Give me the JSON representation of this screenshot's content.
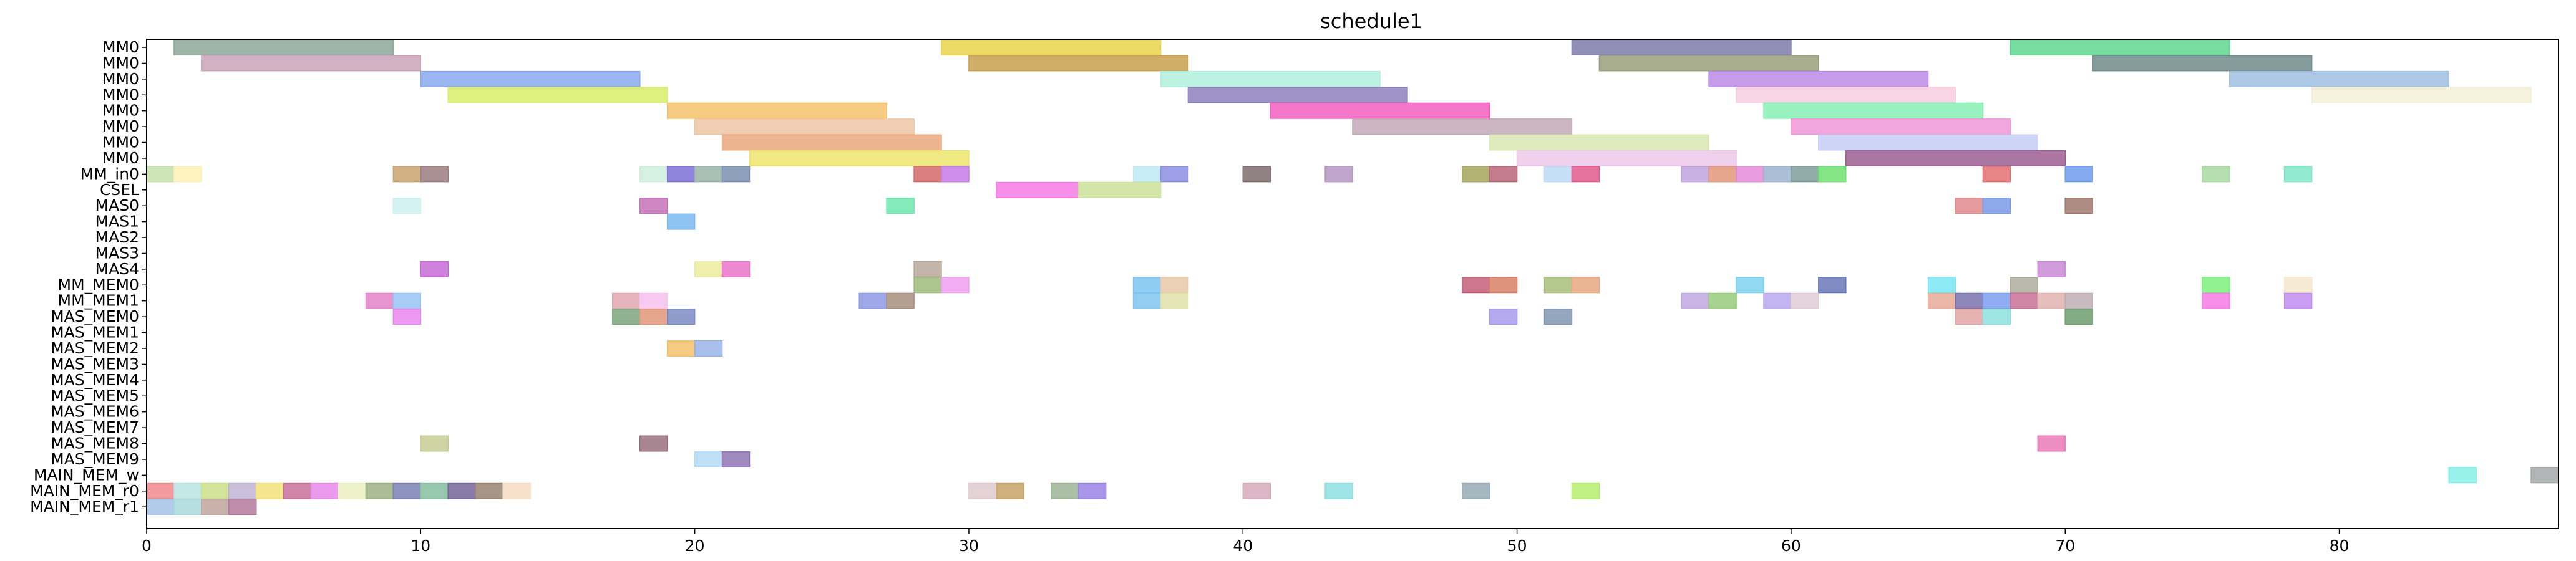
{
  "chart_data": {
    "type": "gantt",
    "title": "schedule1",
    "xlabel": "",
    "ylabel": "",
    "xlim": [
      0,
      88
    ],
    "x_ticks": [
      0,
      10,
      20,
      30,
      40,
      50,
      60,
      70,
      80
    ],
    "grid": false,
    "legend": "none",
    "rows": [
      "MM0",
      "MM0",
      "MM0",
      "MM0",
      "MM0",
      "MM0",
      "MM0",
      "MM0",
      "MM_in0",
      "CSEL",
      "MAS0",
      "MAS1",
      "MAS2",
      "MAS3",
      "MAS4",
      "MM_MEM0",
      "MM_MEM1",
      "MAS_MEM0",
      "MAS_MEM1",
      "MAS_MEM2",
      "MAS_MEM3",
      "MAS_MEM4",
      "MAS_MEM5",
      "MAS_MEM6",
      "MAS_MEM7",
      "MAS_MEM8",
      "MAS_MEM9",
      "MAIN_MEM_w",
      "MAIN_MEM_r0",
      "MAIN_MEM_r1"
    ],
    "tasks": [
      {
        "row": 0,
        "start": 1,
        "end": 9,
        "color": "#8fa89a"
      },
      {
        "row": 0,
        "start": 29,
        "end": 37,
        "color": "#e8d34a"
      },
      {
        "row": 0,
        "start": 52,
        "end": 60,
        "color": "#7d7aa8"
      },
      {
        "row": 0,
        "start": 68,
        "end": 76,
        "color": "#5fd68f"
      },
      {
        "row": 1,
        "start": 2,
        "end": 10,
        "color": "#c9a3b8"
      },
      {
        "row": 1,
        "start": 30,
        "end": 38,
        "color": "#c8a04e"
      },
      {
        "row": 1,
        "start": 53,
        "end": 61,
        "color": "#9a9f7c"
      },
      {
        "row": 1,
        "start": 71,
        "end": 79,
        "color": "#6f8b8b"
      },
      {
        "row": 2,
        "start": 10,
        "end": 18,
        "color": "#8aa8ee"
      },
      {
        "row": 2,
        "start": 37,
        "end": 45,
        "color": "#b2eedc"
      },
      {
        "row": 2,
        "start": 57,
        "end": 65,
        "color": "#bb8ae6"
      },
      {
        "row": 2,
        "start": 76,
        "end": 84,
        "color": "#9fbfe0"
      },
      {
        "row": 3,
        "start": 11,
        "end": 19,
        "color": "#d8ee6a"
      },
      {
        "row": 3,
        "start": 38,
        "end": 46,
        "color": "#8c80bc"
      },
      {
        "row": 3,
        "start": 58,
        "end": 66,
        "color": "#f7cde0"
      },
      {
        "row": 3,
        "start": 79,
        "end": 87,
        "color": "#f3eed6"
      },
      {
        "row": 4,
        "start": 19,
        "end": 27,
        "color": "#f5c26b"
      },
      {
        "row": 4,
        "start": 41,
        "end": 49,
        "color": "#f25ec0"
      },
      {
        "row": 4,
        "start": 59,
        "end": 67,
        "color": "#86efb3"
      },
      {
        "row": 5,
        "start": 20,
        "end": 28,
        "color": "#eec7a4"
      },
      {
        "row": 5,
        "start": 44,
        "end": 52,
        "color": "#c2aab6"
      },
      {
        "row": 5,
        "start": 60,
        "end": 68,
        "color": "#ef98d6"
      },
      {
        "row": 6,
        "start": 21,
        "end": 29,
        "color": "#e9a77e"
      },
      {
        "row": 6,
        "start": 49,
        "end": 57,
        "color": "#d8e6b0"
      },
      {
        "row": 6,
        "start": 61,
        "end": 69,
        "color": "#c6cdf5"
      },
      {
        "row": 7,
        "start": 22,
        "end": 30,
        "color": "#ede56e"
      },
      {
        "row": 7,
        "start": 50,
        "end": 58,
        "color": "#ecc8ea"
      },
      {
        "row": 7,
        "start": 62,
        "end": 70,
        "color": "#9c5e92"
      },
      {
        "row": 8,
        "start": 0,
        "end": 1,
        "color": "#c6e0a8"
      },
      {
        "row": 8,
        "start": 1,
        "end": 2,
        "color": "#fbf1b6"
      },
      {
        "row": 8,
        "start": 9,
        "end": 10,
        "color": "#c8a46e"
      },
      {
        "row": 8,
        "start": 10,
        "end": 11,
        "color": "#9c7c80"
      },
      {
        "row": 8,
        "start": 18,
        "end": 19,
        "color": "#cdeedd"
      },
      {
        "row": 8,
        "start": 19,
        "end": 20,
        "color": "#7d70d6"
      },
      {
        "row": 8,
        "start": 20,
        "end": 21,
        "color": "#99b5a6"
      },
      {
        "row": 8,
        "start": 21,
        "end": 22,
        "color": "#7b8fb0"
      },
      {
        "row": 8,
        "start": 28,
        "end": 29,
        "color": "#d46a6a"
      },
      {
        "row": 8,
        "start": 29,
        "end": 30,
        "color": "#c77ae6"
      },
      {
        "row": 8,
        "start": 36,
        "end": 37,
        "color": "#bfeaf3"
      },
      {
        "row": 8,
        "start": 37,
        "end": 38,
        "color": "#8c8fe0"
      },
      {
        "row": 8,
        "start": 40,
        "end": 41,
        "color": "#7d6c6c"
      },
      {
        "row": 8,
        "start": 43,
        "end": 44,
        "color": "#b597c2"
      },
      {
        "row": 8,
        "start": 48,
        "end": 49,
        "color": "#a4a45a"
      },
      {
        "row": 8,
        "start": 49,
        "end": 50,
        "color": "#b8647a"
      },
      {
        "row": 8,
        "start": 51,
        "end": 52,
        "color": "#bcd8f7"
      },
      {
        "row": 8,
        "start": 52,
        "end": 53,
        "color": "#e05a8c"
      },
      {
        "row": 8,
        "start": 56,
        "end": 57,
        "color": "#c0a4de"
      },
      {
        "row": 8,
        "start": 57,
        "end": 58,
        "color": "#e2977a"
      },
      {
        "row": 8,
        "start": 58,
        "end": 59,
        "color": "#e48ad8"
      },
      {
        "row": 8,
        "start": 59,
        "end": 60,
        "color": "#9cb3cf"
      },
      {
        "row": 8,
        "start": 60,
        "end": 61,
        "color": "#7f9e9a"
      },
      {
        "row": 8,
        "start": 61,
        "end": 62,
        "color": "#6ee06e"
      },
      {
        "row": 8,
        "start": 67,
        "end": 68,
        "color": "#e07070"
      },
      {
        "row": 8,
        "start": 70,
        "end": 71,
        "color": "#6f9cf0"
      },
      {
        "row": 8,
        "start": 75,
        "end": 76,
        "color": "#a8d8a0"
      },
      {
        "row": 8,
        "start": 78,
        "end": 79,
        "color": "#7fe6c8"
      },
      {
        "row": 9,
        "start": 31,
        "end": 34,
        "color": "#f47ae6"
      },
      {
        "row": 9,
        "start": 34,
        "end": 37,
        "color": "#cde09a"
      },
      {
        "row": 10,
        "start": 9,
        "end": 10,
        "color": "#ccf0f0"
      },
      {
        "row": 10,
        "start": 18,
        "end": 19,
        "color": "#c672b8"
      },
      {
        "row": 10,
        "start": 27,
        "end": 28,
        "color": "#6ee6ae"
      },
      {
        "row": 10,
        "start": 66,
        "end": 67,
        "color": "#e08a8a"
      },
      {
        "row": 10,
        "start": 67,
        "end": 68,
        "color": "#7a9ae8"
      },
      {
        "row": 10,
        "start": 70,
        "end": 71,
        "color": "#a0786e"
      },
      {
        "row": 11,
        "start": 19,
        "end": 20,
        "color": "#7ab8f0"
      },
      {
        "row": 14,
        "start": 10,
        "end": 11,
        "color": "#c66ad6"
      },
      {
        "row": 14,
        "start": 20,
        "end": 21,
        "color": "#ecec9e"
      },
      {
        "row": 14,
        "start": 21,
        "end": 22,
        "color": "#ea74c8"
      },
      {
        "row": 14,
        "start": 28,
        "end": 29,
        "color": "#b9a89a"
      },
      {
        "row": 14,
        "start": 69,
        "end": 70,
        "color": "#c98ad6"
      },
      {
        "row": 15,
        "start": 28,
        "end": 29,
        "color": "#9cba7c"
      },
      {
        "row": 15,
        "start": 29,
        "end": 30,
        "color": "#f0a0ee"
      },
      {
        "row": 15,
        "start": 36,
        "end": 37,
        "color": "#7cc4f0"
      },
      {
        "row": 15,
        "start": 37,
        "end": 38,
        "color": "#e8c8a8"
      },
      {
        "row": 15,
        "start": 48,
        "end": 49,
        "color": "#c65e7a"
      },
      {
        "row": 15,
        "start": 49,
        "end": 50,
        "color": "#d88066"
      },
      {
        "row": 15,
        "start": 51,
        "end": 52,
        "color": "#a8c07a"
      },
      {
        "row": 15,
        "start": 52,
        "end": 53,
        "color": "#e8a880"
      },
      {
        "row": 15,
        "start": 58,
        "end": 59,
        "color": "#7cd2ee"
      },
      {
        "row": 15,
        "start": 61,
        "end": 62,
        "color": "#6a78b8"
      },
      {
        "row": 15,
        "start": 65,
        "end": 66,
        "color": "#7ae8f3"
      },
      {
        "row": 15,
        "start": 68,
        "end": 69,
        "color": "#aeaa9c"
      },
      {
        "row": 15,
        "start": 75,
        "end": 76,
        "color": "#7ef07c"
      },
      {
        "row": 15,
        "start": 78,
        "end": 79,
        "color": "#f6e6cc"
      },
      {
        "row": 16,
        "start": 8,
        "end": 9,
        "color": "#e282c8"
      },
      {
        "row": 16,
        "start": 9,
        "end": 10,
        "color": "#98c4f6"
      },
      {
        "row": 16,
        "start": 17,
        "end": 18,
        "color": "#e2a6b0"
      },
      {
        "row": 16,
        "start": 18,
        "end": 19,
        "color": "#f6c2ee"
      },
      {
        "row": 16,
        "start": 26,
        "end": 27,
        "color": "#8e9ae6"
      },
      {
        "row": 16,
        "start": 27,
        "end": 28,
        "color": "#a88e7c"
      },
      {
        "row": 16,
        "start": 36,
        "end": 37,
        "color": "#80c4f0"
      },
      {
        "row": 16,
        "start": 37,
        "end": 38,
        "color": "#e0e0a8"
      },
      {
        "row": 16,
        "start": 56,
        "end": 57,
        "color": "#c0a8e0"
      },
      {
        "row": 16,
        "start": 57,
        "end": 58,
        "color": "#96cc7c"
      },
      {
        "row": 16,
        "start": 59,
        "end": 60,
        "color": "#b8a8ee"
      },
      {
        "row": 16,
        "start": 60,
        "end": 61,
        "color": "#e0ccd8"
      },
      {
        "row": 16,
        "start": 65,
        "end": 66,
        "color": "#e8ac98"
      },
      {
        "row": 16,
        "start": 66,
        "end": 67,
        "color": "#7a72ae"
      },
      {
        "row": 16,
        "start": 67,
        "end": 68,
        "color": "#7c9ef0"
      },
      {
        "row": 16,
        "start": 68,
        "end": 69,
        "color": "#c87098"
      },
      {
        "row": 16,
        "start": 69,
        "end": 70,
        "color": "#e0b4b0"
      },
      {
        "row": 16,
        "start": 70,
        "end": 71,
        "color": "#bfaeb6"
      },
      {
        "row": 16,
        "start": 75,
        "end": 76,
        "color": "#f47ae6"
      },
      {
        "row": 16,
        "start": 78,
        "end": 79,
        "color": "#c08cee"
      },
      {
        "row": 17,
        "start": 9,
        "end": 10,
        "color": "#ea86ee"
      },
      {
        "row": 17,
        "start": 17,
        "end": 18,
        "color": "#7ca47c"
      },
      {
        "row": 17,
        "start": 18,
        "end": 19,
        "color": "#e2967a"
      },
      {
        "row": 17,
        "start": 19,
        "end": 20,
        "color": "#7a8ac2"
      },
      {
        "row": 17,
        "start": 49,
        "end": 50,
        "color": "#a89aec"
      },
      {
        "row": 17,
        "start": 51,
        "end": 52,
        "color": "#8196b0"
      },
      {
        "row": 17,
        "start": 66,
        "end": 67,
        "color": "#e2a4a4"
      },
      {
        "row": 17,
        "start": 67,
        "end": 68,
        "color": "#8ee0e0"
      },
      {
        "row": 17,
        "start": 70,
        "end": 71,
        "color": "#6e9e6e"
      },
      {
        "row": 19,
        "start": 19,
        "end": 20,
        "color": "#f5c26b"
      },
      {
        "row": 19,
        "start": 20,
        "end": 21,
        "color": "#98b4e6"
      },
      {
        "row": 25,
        "start": 10,
        "end": 11,
        "color": "#c8cc94"
      },
      {
        "row": 25,
        "start": 18,
        "end": 19,
        "color": "#9a6e7e"
      },
      {
        "row": 25,
        "start": 69,
        "end": 70,
        "color": "#ea7ab8"
      },
      {
        "row": 26,
        "start": 20,
        "end": 21,
        "color": "#b4dcf6"
      },
      {
        "row": 26,
        "start": 21,
        "end": 22,
        "color": "#9076b4"
      },
      {
        "row": 27,
        "start": 84,
        "end": 85,
        "color": "#86eee8"
      },
      {
        "row": 27,
        "start": 87,
        "end": 88,
        "color": "#a4a8a8"
      },
      {
        "row": 28,
        "start": 0,
        "end": 1,
        "color": "#f0888c"
      },
      {
        "row": 28,
        "start": 1,
        "end": 2,
        "color": "#b8e4e0"
      },
      {
        "row": 28,
        "start": 2,
        "end": 3,
        "color": "#cce08a"
      },
      {
        "row": 28,
        "start": 3,
        "end": 4,
        "color": "#c2b4d6"
      },
      {
        "row": 28,
        "start": 4,
        "end": 5,
        "color": "#f2e27a"
      },
      {
        "row": 28,
        "start": 5,
        "end": 6,
        "color": "#c8709a"
      },
      {
        "row": 28,
        "start": 6,
        "end": 7,
        "color": "#e88aea"
      },
      {
        "row": 28,
        "start": 7,
        "end": 8,
        "color": "#eaf0c0"
      },
      {
        "row": 28,
        "start": 8,
        "end": 9,
        "color": "#9cb084"
      },
      {
        "row": 28,
        "start": 9,
        "end": 10,
        "color": "#7a80b4"
      },
      {
        "row": 28,
        "start": 10,
        "end": 11,
        "color": "#86c0a0"
      },
      {
        "row": 28,
        "start": 11,
        "end": 12,
        "color": "#76649a"
      },
      {
        "row": 28,
        "start": 12,
        "end": 13,
        "color": "#988472"
      },
      {
        "row": 28,
        "start": 13,
        "end": 14,
        "color": "#f6dcc4"
      },
      {
        "row": 28,
        "start": 30,
        "end": 31,
        "color": "#e0cad0"
      },
      {
        "row": 28,
        "start": 31,
        "end": 32,
        "color": "#c8a268"
      },
      {
        "row": 28,
        "start": 33,
        "end": 34,
        "color": "#9cb496"
      },
      {
        "row": 28,
        "start": 34,
        "end": 35,
        "color": "#9c82e6"
      },
      {
        "row": 28,
        "start": 40,
        "end": 41,
        "color": "#d6aabc"
      },
      {
        "row": 28,
        "start": 43,
        "end": 44,
        "color": "#8ee0e4"
      },
      {
        "row": 28,
        "start": 48,
        "end": 49,
        "color": "#98aab4"
      },
      {
        "row": 28,
        "start": 52,
        "end": 53,
        "color": "#b6ee6e"
      },
      {
        "row": 29,
        "start": 0,
        "end": 1,
        "color": "#a4c2e8"
      },
      {
        "row": 29,
        "start": 1,
        "end": 2,
        "color": "#a8d8da"
      },
      {
        "row": 29,
        "start": 2,
        "end": 3,
        "color": "#c0a49c"
      },
      {
        "row": 29,
        "start": 3,
        "end": 4,
        "color": "#b47a9c"
      }
    ]
  }
}
